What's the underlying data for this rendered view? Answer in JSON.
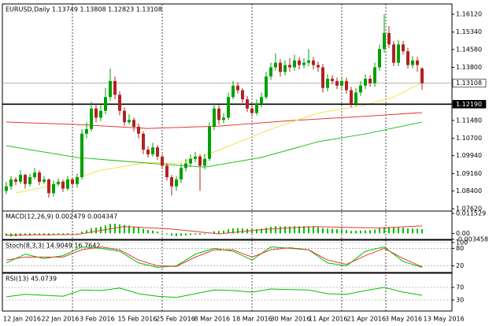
{
  "chart_data": [
    {
      "type": "candlestick",
      "title": "EURUSD,Daily  1.13749 1.13808 1.12823 1.13108",
      "up_color": "#00a000",
      "down_color": "#b22222",
      "candles": [
        [
          1.084,
          1.088,
          1.0825,
          1.086
        ],
        [
          1.086,
          1.0905,
          1.0845,
          1.089
        ],
        [
          1.089,
          1.09,
          1.0865,
          1.088
        ],
        [
          1.088,
          1.093,
          1.087,
          1.091
        ],
        [
          1.091,
          1.0915,
          1.085,
          1.087
        ],
        [
          1.087,
          1.0915,
          1.086,
          1.09
        ],
        [
          1.09,
          1.094,
          1.089,
          1.092
        ],
        [
          1.092,
          1.093,
          1.0865,
          1.088
        ],
        [
          1.088,
          1.0905,
          1.087,
          1.089
        ],
        [
          1.089,
          1.0895,
          1.081,
          1.083
        ],
        [
          1.083,
          1.0885,
          1.0815,
          1.087
        ],
        [
          1.087,
          1.0895,
          1.086,
          1.088
        ],
        [
          1.088,
          1.089,
          1.0835,
          1.085
        ],
        [
          1.085,
          1.0905,
          1.084,
          1.089
        ],
        [
          1.089,
          1.09,
          1.0855,
          1.087
        ],
        [
          1.087,
          1.0915,
          1.0855,
          1.09
        ],
        [
          1.09,
          1.111,
          1.089,
          1.109
        ],
        [
          1.109,
          1.114,
          1.107,
          1.111
        ],
        [
          1.111,
          1.123,
          1.11,
          1.12
        ],
        [
          1.12,
          1.122,
          1.114,
          1.116
        ],
        [
          1.116,
          1.1215,
          1.1145,
          1.119
        ],
        [
          1.119,
          1.129,
          1.1175,
          1.125
        ],
        [
          1.125,
          1.1375,
          1.1235,
          1.132
        ],
        [
          1.132,
          1.134,
          1.124,
          1.126
        ],
        [
          1.126,
          1.1275,
          1.117,
          1.119
        ],
        [
          1.119,
          1.1205,
          1.1125,
          1.114
        ],
        [
          1.114,
          1.1175,
          1.113,
          1.115
        ],
        [
          1.115,
          1.116,
          1.11,
          1.112
        ],
        [
          1.112,
          1.1135,
          1.107,
          1.109
        ],
        [
          1.109,
          1.11,
          1.1,
          1.102
        ],
        [
          1.102,
          1.1035,
          1.0985,
          1.1
        ],
        [
          1.1,
          1.105,
          1.099,
          1.103
        ],
        [
          1.103,
          1.104,
          1.0975,
          1.099
        ],
        [
          1.099,
          1.1,
          1.0935,
          1.095
        ],
        [
          1.095,
          1.096,
          1.0885,
          1.09
        ],
        [
          1.09,
          1.091,
          1.082,
          1.086
        ],
        [
          1.086,
          1.0905,
          1.084,
          1.089
        ],
        [
          1.089,
          1.096,
          1.0875,
          1.094
        ],
        [
          1.094,
          1.098,
          1.0925,
          1.096
        ],
        [
          1.096,
          1.1,
          1.0945,
          1.098
        ],
        [
          1.098,
          1.101,
          1.0965,
          1.099
        ],
        [
          1.099,
          1.1,
          1.084,
          1.095
        ],
        [
          1.095,
          1.1,
          1.0935,
          1.098
        ],
        [
          1.098,
          1.114,
          1.097,
          1.112
        ],
        [
          1.112,
          1.122,
          1.1105,
          1.12
        ],
        [
          1.12,
          1.1215,
          1.113,
          1.115
        ],
        [
          1.115,
          1.118,
          1.1135,
          1.116
        ],
        [
          1.116,
          1.127,
          1.115,
          1.125
        ],
        [
          1.125,
          1.132,
          1.124,
          1.13
        ],
        [
          1.13,
          1.1315,
          1.1265,
          1.128
        ],
        [
          1.128,
          1.129,
          1.1225,
          1.124
        ],
        [
          1.124,
          1.1255,
          1.1185,
          1.12
        ],
        [
          1.12,
          1.1215,
          1.1165,
          1.118
        ],
        [
          1.118,
          1.124,
          1.117,
          1.122
        ],
        [
          1.122,
          1.127,
          1.1205,
          1.125
        ],
        [
          1.125,
          1.136,
          1.124,
          1.134
        ],
        [
          1.134,
          1.14,
          1.1325,
          1.138
        ],
        [
          1.138,
          1.144,
          1.1365,
          1.14
        ],
        [
          1.14,
          1.1415,
          1.134,
          1.136
        ],
        [
          1.136,
          1.141,
          1.1345,
          1.139
        ],
        [
          1.139,
          1.142,
          1.136,
          1.138
        ],
        [
          1.138,
          1.1435,
          1.1365,
          1.141
        ],
        [
          1.141,
          1.1425,
          1.137,
          1.139
        ],
        [
          1.139,
          1.142,
          1.1375,
          1.14
        ],
        [
          1.14,
          1.146,
          1.1385,
          1.141
        ],
        [
          1.141,
          1.1425,
          1.137,
          1.139
        ],
        [
          1.139,
          1.1405,
          1.136,
          1.138
        ],
        [
          1.138,
          1.1395,
          1.127,
          1.129
        ],
        [
          1.129,
          1.135,
          1.1275,
          1.133
        ],
        [
          1.133,
          1.1345,
          1.1305,
          1.132
        ],
        [
          1.132,
          1.1335,
          1.1285,
          1.13
        ],
        [
          1.13,
          1.134,
          1.1285,
          1.132
        ],
        [
          1.132,
          1.1335,
          1.1265,
          1.128
        ],
        [
          1.128,
          1.1295,
          1.1205,
          1.122
        ],
        [
          1.122,
          1.129,
          1.121,
          1.127
        ],
        [
          1.127,
          1.132,
          1.1255,
          1.13
        ],
        [
          1.13,
          1.135,
          1.1285,
          1.133
        ],
        [
          1.133,
          1.1345,
          1.1295,
          1.131
        ],
        [
          1.131,
          1.14,
          1.1295,
          1.138
        ],
        [
          1.138,
          1.148,
          1.1365,
          1.146
        ],
        [
          1.146,
          1.1612,
          1.1445,
          1.153
        ],
        [
          1.153,
          1.156,
          1.1465,
          1.148
        ],
        [
          1.148,
          1.1495,
          1.1385,
          1.14
        ],
        [
          1.14,
          1.15,
          1.1385,
          1.148
        ],
        [
          1.148,
          1.1495,
          1.1435,
          1.145
        ],
        [
          1.145,
          1.1465,
          1.1375,
          1.139
        ],
        [
          1.139,
          1.143,
          1.1375,
          1.141
        ],
        [
          1.141,
          1.1425,
          1.136,
          1.139
        ],
        [
          1.1375,
          1.1381,
          1.1282,
          1.1311
        ]
      ],
      "lines": [
        {
          "color": "#e53935",
          "x": [
            0,
            15,
            30,
            45,
            60,
            75,
            88
          ],
          "values": [
            1.1141,
            1.113,
            1.1113,
            1.1123,
            1.1147,
            1.1165,
            1.1182
          ]
        },
        {
          "color": "#f5e050",
          "x": [
            2,
            10,
            20,
            30,
            36,
            44,
            56,
            66,
            76,
            82,
            88
          ],
          "values": [
            1.0831,
            1.0865,
            1.093,
            1.0965,
            1.096,
            1.101,
            1.111,
            1.118,
            1.1215,
            1.125,
            1.1313
          ]
        },
        {
          "color": "#22c022",
          "x": [
            0,
            15,
            32,
            42,
            54,
            66,
            76,
            88
          ],
          "values": [
            1.1037,
            1.0986,
            1.0958,
            1.0944,
            1.0986,
            1.1055,
            1.1089,
            1.1141
          ]
        }
      ],
      "hlines": [
        {
          "value": 1.13108,
          "color": "#a0a0a0"
        },
        {
          "value": 1.1219,
          "label": "1.12190",
          "color": "#000000"
        }
      ],
      "ylim": [
        1.0752,
        1.1657
      ],
      "yticks": [
        {
          "value": 1.1612,
          "label": "1.16120"
        },
        {
          "value": 1.1534,
          "label": "1.15340"
        },
        {
          "value": 1.1458,
          "label": "1.14580"
        },
        {
          "value": 1.138,
          "label": "1.13800"
        },
        {
          "value": 1.1148,
          "label": "1.11480"
        },
        {
          "value": 1.107,
          "label": "1.10700"
        },
        {
          "value": 1.0994,
          "label": "1.09940"
        },
        {
          "value": 1.0916,
          "label": "1.09160"
        },
        {
          "value": 1.084,
          "label": "1.08400"
        },
        {
          "value": 1.0762,
          "label": "1.07620"
        }
      ],
      "x_labels": [
        "12 Jan 2016",
        "22 Jan 2016",
        "3 Feb 2016",
        "15 Feb 2016",
        "25 Feb 2016",
        "8 Mar 2016",
        "18 Mar 2016",
        "30 Mar 2016",
        "11 Apr 2016",
        "21 Apr 2016",
        "3 May 2016",
        "13 May 2016"
      ]
    },
    {
      "type": "macd",
      "title": "MACD(12,26,9) 0.002479 0.004347",
      "color": "#00c000",
      "values": [
        -0.0015,
        -0.0018,
        -0.0016,
        -0.0014,
        -0.0012,
        -0.0013,
        -0.001,
        -0.0009,
        -0.001,
        -0.0012,
        -0.001,
        -0.0008,
        -0.0009,
        -0.0007,
        -0.0006,
        -0.0003,
        0.001,
        0.0018,
        0.0029,
        0.0033,
        0.0039,
        0.0046,
        0.0055,
        0.0056,
        0.0052,
        0.0048,
        0.0045,
        0.004,
        0.0034,
        0.0026,
        0.002,
        0.0016,
        0.001,
        0.0003,
        -0.0005,
        -0.0013,
        -0.0016,
        -0.0014,
        -0.0012,
        -0.0009,
        -0.0007,
        -0.0008,
        -0.0005,
        0.0004,
        0.0012,
        0.0014,
        0.0016,
        0.0023,
        0.0029,
        0.003,
        0.0028,
        0.0026,
        0.0024,
        0.0025,
        0.0027,
        0.0033,
        0.0038,
        0.0041,
        0.004,
        0.0041,
        0.004,
        0.0042,
        0.0041,
        0.0041,
        0.0041,
        0.0039,
        0.0037,
        0.003,
        0.0028,
        0.0026,
        0.0024,
        0.0023,
        0.0019,
        0.0014,
        0.0015,
        0.0016,
        0.0018,
        0.0018,
        0.0022,
        0.0029,
        0.0036,
        0.0037,
        0.0034,
        0.0035,
        0.0033,
        0.0029,
        0.0028,
        0.0027,
        0.002479
      ],
      "signal": {
        "color": "#e53935",
        "x": [
          0,
          15,
          25,
          35,
          45,
          55,
          65,
          75,
          80,
          88
        ],
        "values": [
          -0.001,
          -0.0006,
          0.004,
          0.0025,
          -0.0003,
          0.0024,
          0.0039,
          0.0033,
          0.0032,
          0.004347
        ]
      },
      "ylim": [
        -0.003458,
        0.011529
      ],
      "yticks": [
        0.011529,
        {
          "value": 0,
          "label": "0.00"
        },
        -0.003458
      ]
    },
    {
      "type": "line",
      "title": "Stoch(8,3,3) 14.9049 16.7642",
      "levels": true,
      "x": [
        0,
        4,
        8,
        12,
        16,
        20,
        24,
        28,
        32,
        36,
        40,
        44,
        48,
        52,
        56,
        60,
        64,
        68,
        72,
        76,
        80,
        84,
        88
      ],
      "series": [
        {
          "color": "#00c000",
          "values": [
            30,
            60,
            45,
            55,
            85,
            80,
            70,
            30,
            15,
            20,
            60,
            80,
            70,
            40,
            85,
            80,
            75,
            30,
            20,
            70,
            85,
            35,
            14.9049
          ]
        },
        {
          "color": "#e53935",
          "values": [
            40,
            50,
            50,
            50,
            75,
            85,
            75,
            40,
            20,
            18,
            50,
            75,
            75,
            50,
            75,
            82,
            75,
            40,
            25,
            55,
            80,
            45,
            16.7642
          ]
        }
      ],
      "ylim": [
        0,
        100
      ],
      "yticks": [
        100,
        80,
        20
      ]
    },
    {
      "type": "line",
      "title": "RSI(13) 45.0739",
      "levels": true,
      "x": [
        0,
        4,
        8,
        12,
        16,
        20,
        24,
        28,
        32,
        36,
        40,
        44,
        48,
        52,
        56,
        60,
        64,
        68,
        72,
        76,
        80,
        84,
        88
      ],
      "series": [
        {
          "color": "#00c000",
          "values": [
            40,
            48,
            45,
            42,
            62,
            60,
            68,
            50,
            42,
            38,
            50,
            62,
            60,
            55,
            65,
            63,
            62,
            50,
            48,
            60,
            70,
            55,
            45.0739
          ]
        }
      ],
      "ylim": [
        0,
        100
      ],
      "yticks": [
        70,
        30
      ]
    }
  ]
}
